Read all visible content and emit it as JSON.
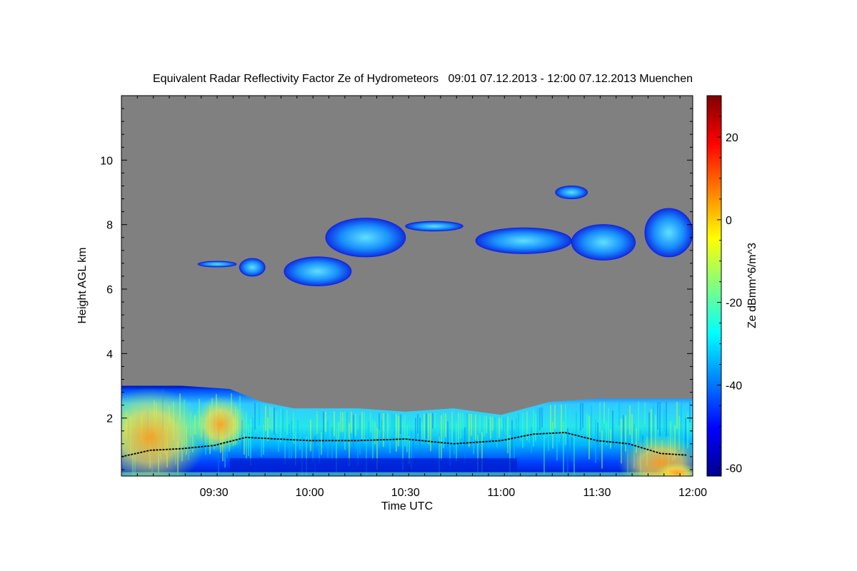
{
  "chart_data": {
    "type": "heatmap",
    "title": "Equivalent Radar Reflectivity Factor Ze of Hydrometeors   09:01 07.12.2013 - 12:00 07.12.2013 Muenchen",
    "xlabel": "Time UTC",
    "ylabel": "Height AGL km",
    "colorbar_label": "Ze dBmm^6/m^3",
    "xlim": [
      "09:01",
      "12:00"
    ],
    "ylim": [
      0.2,
      12.0
    ],
    "x_ticks": [
      "09:30",
      "10:00",
      "10:30",
      "11:00",
      "11:30",
      "12:00"
    ],
    "y_ticks": [
      "2",
      "4",
      "6",
      "8",
      "10"
    ],
    "colorbar_ticks": [
      "20",
      "0",
      "-20",
      "-40",
      "-60"
    ],
    "colorbar_range": [
      -62,
      30
    ],
    "colormap": "jet",
    "no_echo_color": "#808080",
    "boundary_layer_echo": {
      "description_ze_dbz": "Continuous low-level echo with reflectivity mostly between -45 and 0 dBZ",
      "top_height_km": [
        {
          "time": "09:01",
          "height": 3.0
        },
        {
          "time": "09:20",
          "height": 3.0
        },
        {
          "time": "09:35",
          "height": 2.9
        },
        {
          "time": "09:45",
          "height": 2.5
        },
        {
          "time": "09:55",
          "height": 2.3
        },
        {
          "time": "10:15",
          "height": 2.3
        },
        {
          "time": "10:30",
          "height": 2.2
        },
        {
          "time": "10:45",
          "height": 2.3
        },
        {
          "time": "11:00",
          "height": 2.1
        },
        {
          "time": "11:15",
          "height": 2.5
        },
        {
          "time": "11:30",
          "height": 2.6
        },
        {
          "time": "12:00",
          "height": 2.6
        }
      ]
    },
    "cloud_base_height_km": [
      {
        "time": "09:01",
        "height": 0.8
      },
      {
        "time": "09:10",
        "height": 1.0
      },
      {
        "time": "09:20",
        "height": 1.05
      },
      {
        "time": "09:30",
        "height": 1.15
      },
      {
        "time": "09:40",
        "height": 1.4
      },
      {
        "time": "09:50",
        "height": 1.35
      },
      {
        "time": "10:00",
        "height": 1.3
      },
      {
        "time": "10:15",
        "height": 1.3
      },
      {
        "time": "10:30",
        "height": 1.35
      },
      {
        "time": "10:45",
        "height": 1.2
      },
      {
        "time": "11:00",
        "height": 1.3
      },
      {
        "time": "11:10",
        "height": 1.5
      },
      {
        "time": "11:20",
        "height": 1.55
      },
      {
        "time": "11:30",
        "height": 1.3
      },
      {
        "time": "11:40",
        "height": 1.2
      },
      {
        "time": "11:50",
        "height": 0.9
      },
      {
        "time": "11:58",
        "height": 0.85
      }
    ],
    "upper_cloud_layers": [
      {
        "time_start": "09:25",
        "time_end": "09:37",
        "height_bottom_km": 6.7,
        "height_top_km": 6.85,
        "ze_dbz": -45
      },
      {
        "time_start": "09:38",
        "time_end": "09:46",
        "height_bottom_km": 6.4,
        "height_top_km": 6.95,
        "ze_dbz": -40
      },
      {
        "time_start": "09:52",
        "time_end": "10:13",
        "height_bottom_km": 6.1,
        "height_top_km": 7.0,
        "ze_dbz": -38
      },
      {
        "time_start": "10:05",
        "time_end": "10:30",
        "height_bottom_km": 7.0,
        "height_top_km": 8.2,
        "ze_dbz": -35
      },
      {
        "time_start": "10:30",
        "time_end": "10:48",
        "height_bottom_km": 7.8,
        "height_top_km": 8.1,
        "ze_dbz": -40
      },
      {
        "time_start": "10:52",
        "time_end": "11:22",
        "height_bottom_km": 7.1,
        "height_top_km": 7.9,
        "ze_dbz": -40
      },
      {
        "time_start": "11:22",
        "time_end": "11:42",
        "height_bottom_km": 6.9,
        "height_top_km": 8.0,
        "ze_dbz": -35
      },
      {
        "time_start": "11:17",
        "time_end": "11:27",
        "height_bottom_km": 8.8,
        "height_top_km": 9.2,
        "ze_dbz": -45
      },
      {
        "time_start": "11:45",
        "time_end": "12:00",
        "height_bottom_km": 7.0,
        "height_top_km": 8.5,
        "ze_dbz": -35
      }
    ]
  }
}
